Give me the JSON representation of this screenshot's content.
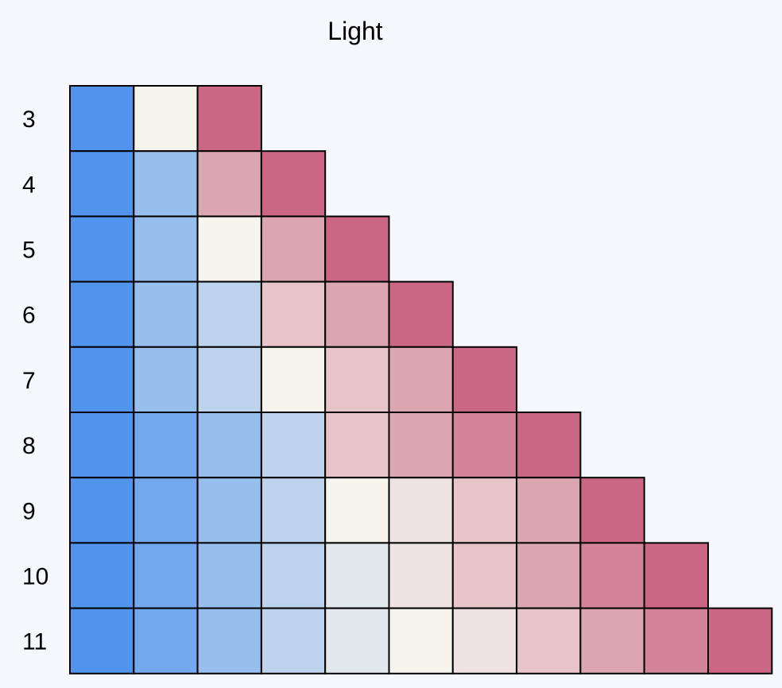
{
  "chart_data": {
    "type": "heatmap",
    "title": "Light",
    "rows": [
      "3",
      "4",
      "5",
      "6",
      "7",
      "8",
      "9",
      "10",
      "11"
    ],
    "palette": {
      "b1": "#5194ee",
      "b2": "#72a8ee",
      "b3": "#96bfee",
      "b4": "#bdd3ec",
      "b5": "#e2e9ec",
      "n": "#f5f5ee",
      "p5": "#efe2e3",
      "p4": "#e6c4ca",
      "p3": "#dca5b2",
      "p2": "#d3839a",
      "p1": "#cb6785"
    },
    "matrix": [
      [
        "b1",
        "n",
        "p1"
      ],
      [
        "b1",
        "b3",
        "p3",
        "p1"
      ],
      [
        "b1",
        "b3",
        "n",
        "p3",
        "p1"
      ],
      [
        "b1",
        "b3",
        "b4",
        "p4",
        "p3",
        "p1"
      ],
      [
        "b1",
        "b3",
        "b4",
        "n",
        "p4",
        "p3",
        "p1"
      ],
      [
        "b1",
        "b2",
        "b3",
        "b4",
        "p4",
        "p3",
        "p2",
        "p1"
      ],
      [
        "b1",
        "b2",
        "b3",
        "b4",
        "n",
        "p5",
        "p4",
        "p3",
        "p1"
      ],
      [
        "b1",
        "b2",
        "b3",
        "b4",
        "b5",
        "p5",
        "p4",
        "p3",
        "p2",
        "p1"
      ],
      [
        "b1",
        "b2",
        "b3",
        "b4",
        "b5",
        "n",
        "p5",
        "p4",
        "p3",
        "p2",
        "p1"
      ]
    ]
  }
}
